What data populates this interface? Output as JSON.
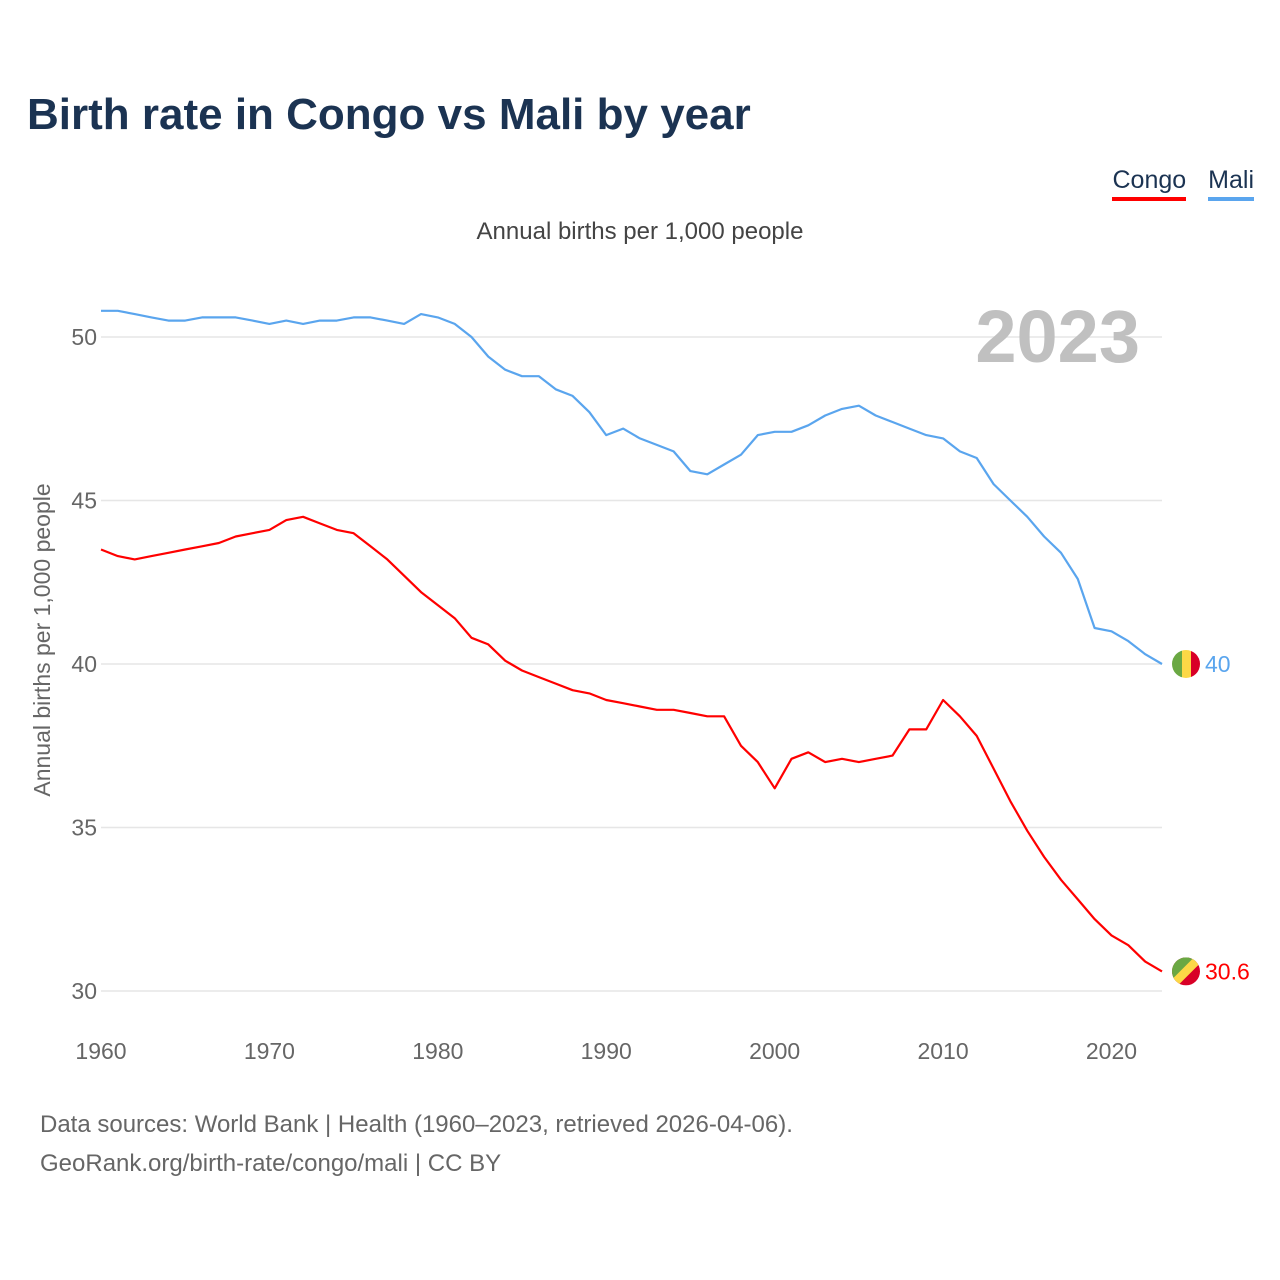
{
  "title": "Birth rate in Congo vs Mali by year",
  "subtitle": "Annual births per 1,000 people",
  "footer": {
    "line1": "Data sources: World Bank | Health (1960–2023, retrieved 2026-04-06).",
    "line2": "GeoRank.org/birth-rate/congo/mali | CC BY"
  },
  "chart_data": {
    "type": "line",
    "title": "Birth rate in Congo vs Mali by year",
    "ylabel": "Annual births per 1,000 people",
    "xlabel": "",
    "year_label": "2023",
    "xlim": [
      1960,
      2023
    ],
    "ylim": [
      30,
      51
    ],
    "x_ticks": [
      1960,
      1970,
      1980,
      1990,
      2000,
      2010,
      2020
    ],
    "y_ticks": [
      30,
      35,
      40,
      45,
      50
    ],
    "grid": true,
    "legend_placement": "top-right",
    "x": [
      1960,
      1961,
      1962,
      1963,
      1964,
      1965,
      1966,
      1967,
      1968,
      1969,
      1970,
      1971,
      1972,
      1973,
      1974,
      1975,
      1976,
      1977,
      1978,
      1979,
      1980,
      1981,
      1982,
      1983,
      1984,
      1985,
      1986,
      1987,
      1988,
      1989,
      1990,
      1991,
      1992,
      1993,
      1994,
      1995,
      1996,
      1997,
      1998,
      1999,
      2000,
      2001,
      2002,
      2003,
      2004,
      2005,
      2006,
      2007,
      2008,
      2009,
      2010,
      2011,
      2012,
      2013,
      2014,
      2015,
      2016,
      2017,
      2018,
      2019,
      2020,
      2021,
      2022,
      2023
    ],
    "series": [
      {
        "name": "Congo",
        "color": "#ff0000",
        "end_label": "30.6",
        "values": [
          43.5,
          43.3,
          43.2,
          43.3,
          43.4,
          43.5,
          43.6,
          43.7,
          43.9,
          44.0,
          44.1,
          44.4,
          44.5,
          44.3,
          44.1,
          44.0,
          43.6,
          43.2,
          42.7,
          42.2,
          41.8,
          41.4,
          40.8,
          40.6,
          40.1,
          39.8,
          39.6,
          39.4,
          39.2,
          39.1,
          38.9,
          38.8,
          38.7,
          38.6,
          38.6,
          38.5,
          38.4,
          38.4,
          37.5,
          37.0,
          36.2,
          37.1,
          37.3,
          37.0,
          37.1,
          37.0,
          37.1,
          37.2,
          38.0,
          38.0,
          38.9,
          38.4,
          37.8,
          36.8,
          35.8,
          34.9,
          34.1,
          33.4,
          32.8,
          32.2,
          31.7,
          31.4,
          30.9,
          30.6
        ]
      },
      {
        "name": "Mali",
        "color": "#5aa5ee",
        "end_label": "40",
        "values": [
          50.8,
          50.8,
          50.7,
          50.6,
          50.5,
          50.5,
          50.6,
          50.6,
          50.6,
          50.5,
          50.4,
          50.5,
          50.4,
          50.5,
          50.5,
          50.6,
          50.6,
          50.5,
          50.4,
          50.7,
          50.6,
          50.4,
          50.0,
          49.4,
          49.0,
          48.8,
          48.8,
          48.4,
          48.2,
          47.7,
          47.0,
          47.2,
          46.9,
          46.7,
          46.5,
          45.9,
          45.8,
          46.1,
          46.4,
          47.0,
          47.1,
          47.1,
          47.3,
          47.6,
          47.8,
          47.9,
          47.6,
          47.4,
          47.2,
          47.0,
          46.9,
          46.5,
          46.3,
          45.5,
          45.0,
          44.5,
          43.9,
          43.4,
          42.6,
          41.1,
          41.0,
          40.7,
          40.3,
          40.0
        ]
      }
    ]
  }
}
